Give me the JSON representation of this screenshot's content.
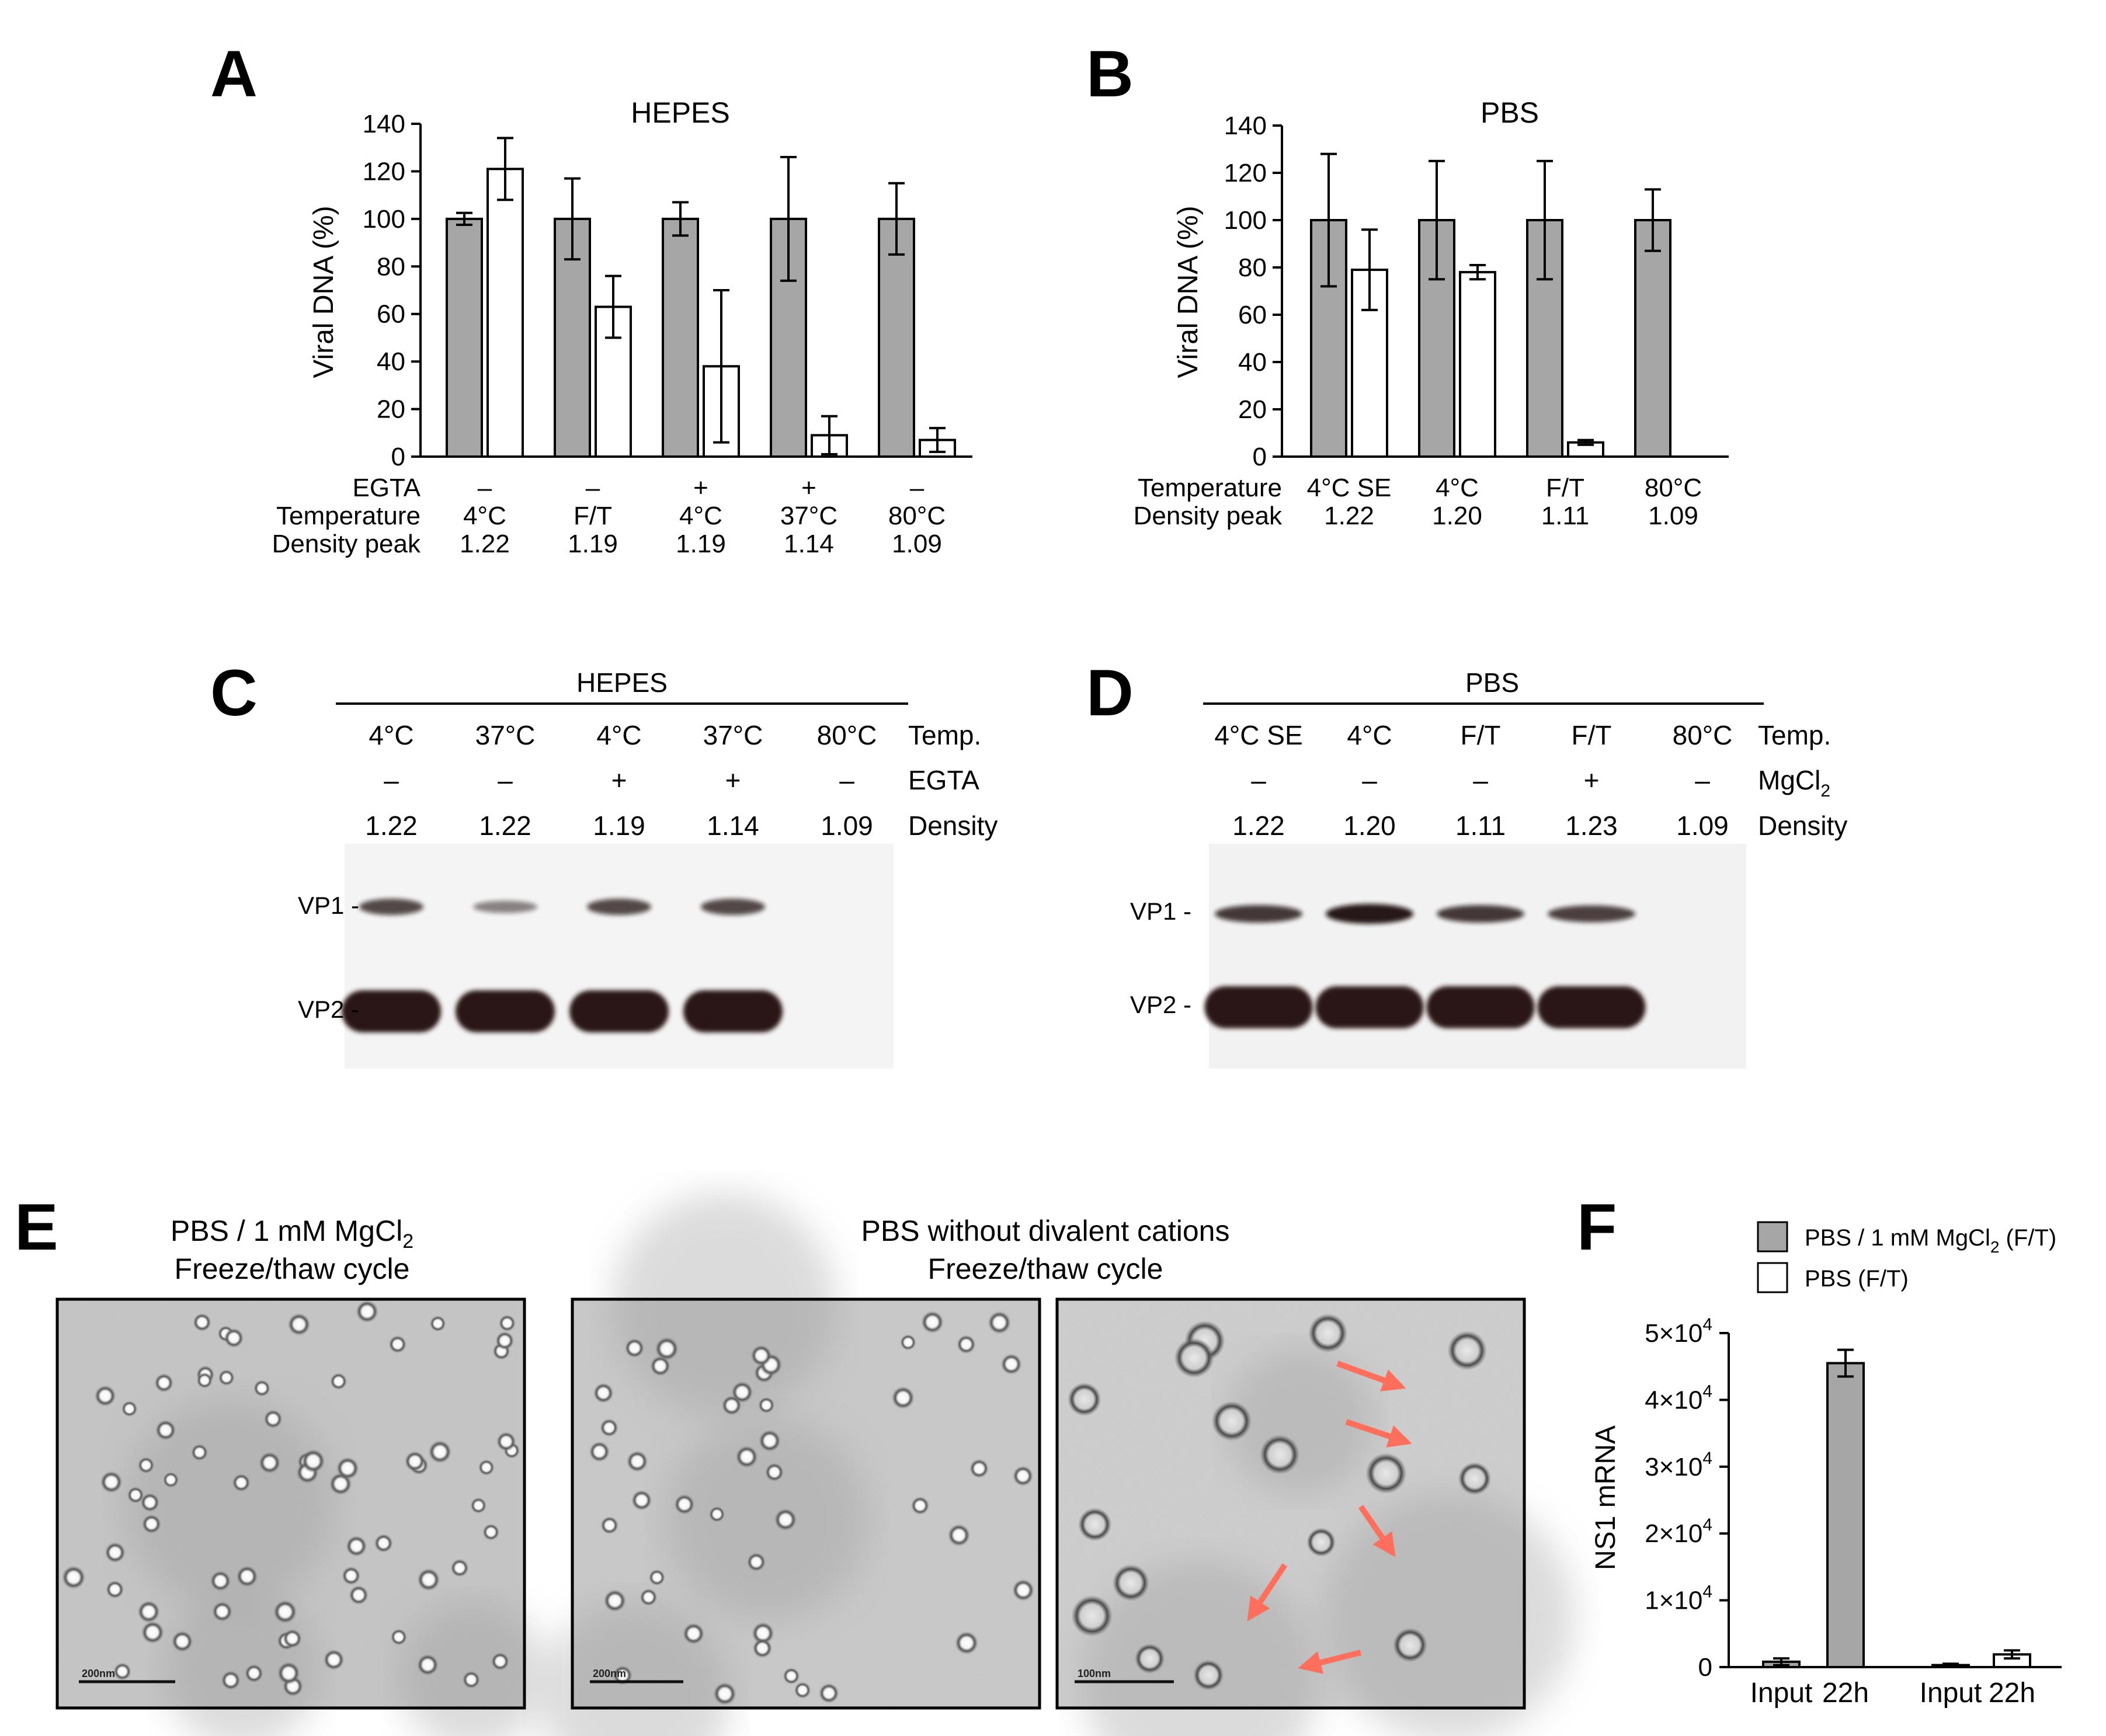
{
  "panels": {
    "A": {
      "letter": "A",
      "title": "HEPES",
      "row_labels": [
        "EGTA",
        "Temperature",
        "Density peak"
      ],
      "columns": [
        {
          "egta": "–",
          "temp": "4°C",
          "density": "1.22"
        },
        {
          "egta": "–",
          "temp": "F/T",
          "density": "1.19"
        },
        {
          "egta": "+",
          "temp": "4°C",
          "density": "1.19"
        },
        {
          "egta": "+",
          "temp": "37°C",
          "density": "1.14"
        },
        {
          "egta": "–",
          "temp": "80°C",
          "density": "1.09"
        }
      ]
    },
    "B": {
      "letter": "B",
      "title": "PBS",
      "row_labels": [
        "Temperature",
        "Density peak"
      ],
      "columns": [
        {
          "temp": "4°C SE",
          "density": "1.22"
        },
        {
          "temp": "4°C",
          "density": "1.20"
        },
        {
          "temp": "F/T",
          "density": "1.11"
        },
        {
          "temp": "80°C",
          "density": "1.09"
        }
      ]
    },
    "C": {
      "letter": "C",
      "title": "HEPES",
      "lanes": [
        {
          "temp": "4°C",
          "egta": "–",
          "density": "1.22"
        },
        {
          "temp": "37°C",
          "egta": "–",
          "density": "1.22"
        },
        {
          "temp": "4°C",
          "egta": "+",
          "density": "1.19"
        },
        {
          "temp": "37°C",
          "egta": "+",
          "density": "1.14"
        },
        {
          "temp": "80°C",
          "egta": "–",
          "density": "1.09"
        }
      ],
      "row_labels": [
        "Temp.",
        "EGTA",
        "Density"
      ],
      "bands": [
        "VP1 -",
        "VP2 -"
      ],
      "vp1_intensity": [
        0.7,
        0.35,
        0.7,
        0.7,
        0
      ],
      "vp2_intensity": [
        1,
        1,
        1,
        1,
        0
      ]
    },
    "D": {
      "letter": "D",
      "title": "PBS",
      "lanes": [
        {
          "temp": "4°C SE",
          "mg": "–",
          "density": "1.22"
        },
        {
          "temp": "4°C",
          "mg": "–",
          "density": "1.20"
        },
        {
          "temp": "F/T",
          "mg": "–",
          "density": "1.11"
        },
        {
          "temp": "F/T",
          "mg": "+",
          "density": "1.23"
        },
        {
          "temp": "80°C",
          "mg": "–",
          "density": "1.09"
        }
      ],
      "row_labels": [
        "Temp.",
        "MgCl",
        "2",
        "Density"
      ],
      "bands": [
        "VP1 -",
        "VP2 -"
      ],
      "vp1_intensity": [
        0.8,
        1,
        0.8,
        0.75,
        0
      ],
      "vp2_intensity": [
        1,
        1,
        1,
        1,
        0
      ]
    },
    "E": {
      "letter": "E",
      "title1_a": "PBS / 1 mM MgCl",
      "title1_sub": "2",
      "title1_b": "Freeze/thaw cycle",
      "title2_a": "PBS without divalent cations",
      "title2_b": "Freeze/thaw cycle",
      "scale_bars": [
        "200nm",
        "200nm",
        "100nm"
      ]
    },
    "F": {
      "letter": "F",
      "legend": [
        {
          "text_a": "PBS / 1 mM MgCl",
          "sub": "2",
          "text_b": " (F/T)",
          "color": "#a6a6a6"
        },
        {
          "text_a": "PBS (F/T)",
          "sub": "",
          "text_b": "",
          "color": "#ffffff"
        }
      ],
      "ylabel": "NS1 mRNA",
      "ytick_mant": [
        "0",
        "1×10",
        "2×10",
        "3×10",
        "4×10",
        "5×10"
      ],
      "ytick_exp": "4",
      "xlabels": [
        "Input",
        "22h",
        "Input",
        "22h"
      ]
    }
  },
  "chart_data": [
    {
      "type": "bar",
      "title": "HEPES",
      "ylabel": "Viral DNA (%)",
      "ylim": [
        0,
        140
      ],
      "yticks": [
        0,
        20,
        40,
        60,
        80,
        100,
        120,
        140
      ],
      "categories": [
        "4°C",
        "F/T",
        "4°C",
        "37°C",
        "80°C"
      ],
      "series": [
        {
          "color": "#a6a6a6",
          "values": [
            100,
            100,
            100,
            100,
            100
          ],
          "err": [
            2.5,
            17,
            7,
            26,
            15
          ]
        },
        {
          "color": "#ffffff",
          "values": [
            121,
            63,
            38,
            9,
            7
          ],
          "err": [
            13,
            13,
            32,
            8,
            5
          ]
        }
      ]
    },
    {
      "type": "bar",
      "title": "PBS",
      "ylabel": "Viral DNA (%)",
      "ylim": [
        0,
        140
      ],
      "yticks": [
        0,
        20,
        40,
        60,
        80,
        100,
        120,
        140
      ],
      "categories": [
        "4°C SE",
        "4°C",
        "F/T",
        "80°C"
      ],
      "series": [
        {
          "color": "#a6a6a6",
          "values": [
            100,
            100,
            100,
            100
          ],
          "err": [
            28,
            25,
            25,
            13
          ]
        },
        {
          "color": "#ffffff",
          "values": [
            79,
            78,
            6,
            null
          ],
          "err": [
            17,
            3,
            1,
            null
          ]
        }
      ]
    },
    {
      "type": "bar",
      "ylabel": "NS1 mRNA",
      "ylim": [
        0,
        50000
      ],
      "yticks": [
        0,
        10000,
        20000,
        30000,
        40000,
        50000
      ],
      "categories": [
        "Input",
        "22h",
        "Input",
        "22h"
      ],
      "series": [
        {
          "name": "PBS / 1 mM MgCl2 (F/T)",
          "color": "#a6a6a6",
          "values": [
            800,
            45500,
            null,
            null
          ],
          "err": [
            500,
            2000,
            null,
            null
          ]
        },
        {
          "name": "PBS (F/T)",
          "color": "#ffffff",
          "values": [
            null,
            null,
            300,
            1900
          ],
          "err": [
            null,
            null,
            200,
            600
          ]
        }
      ]
    }
  ]
}
